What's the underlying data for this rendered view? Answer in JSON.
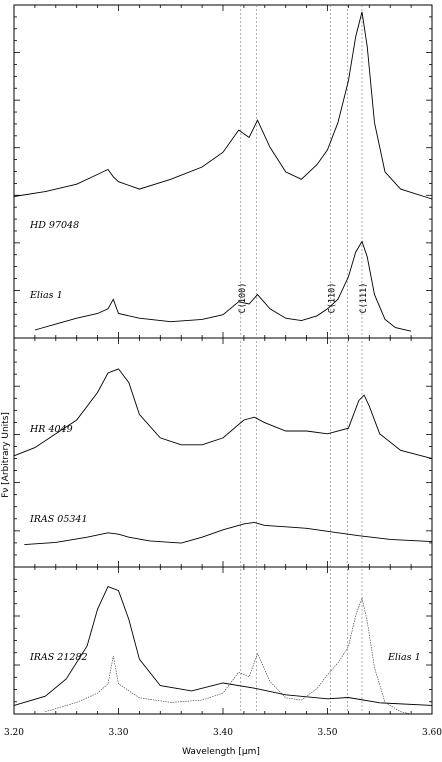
{
  "chart_data": {
    "type": "line",
    "xlabel": "Wavelength [μm]",
    "ylabel": "Fν [Arbitrary Units]",
    "xlim": [
      3.2,
      3.6
    ],
    "x_ticks": [
      "3.20",
      "3.30",
      "3.40",
      "3.50",
      "3.60"
    ],
    "reference_lines": [
      {
        "x": 3.417,
        "label": "C(100)"
      },
      {
        "x": 3.432,
        "label": ""
      },
      {
        "x": 3.503,
        "label": "C(110)"
      },
      {
        "x": 3.519,
        "label": ""
      },
      {
        "x": 3.533,
        "label": "C(111)"
      }
    ],
    "panels": [
      {
        "ylim": [
          0,
          1
        ],
        "series": [
          {
            "name": "HD 97048",
            "style": "solid",
            "x": [
              3.2,
              3.23,
              3.26,
              3.28,
              3.29,
              3.295,
              3.3,
              3.32,
              3.35,
              3.38,
              3.4,
              3.415,
              3.425,
              3.433,
              3.445,
              3.46,
              3.475,
              3.49,
              3.5,
              3.51,
              3.52,
              3.527,
              3.533,
              3.538,
              3.545,
              3.555,
              3.57,
              3.6
            ],
            "y": [
              0.25,
              0.27,
              0.3,
              0.34,
              0.36,
              0.33,
              0.31,
              0.28,
              0.32,
              0.37,
              0.43,
              0.52,
              0.49,
              0.56,
              0.45,
              0.35,
              0.32,
              0.38,
              0.44,
              0.55,
              0.72,
              0.9,
              1.0,
              0.86,
              0.55,
              0.35,
              0.28,
              0.24
            ]
          },
          {
            "name": "Elias 1",
            "style": "solid",
            "x": [
              3.22,
              3.24,
              3.26,
              3.28,
              3.29,
              3.295,
              3.3,
              3.32,
              3.35,
              3.38,
              3.4,
              3.415,
              3.425,
              3.433,
              3.445,
              3.46,
              3.475,
              3.49,
              3.5,
              3.51,
              3.52,
              3.527,
              3.533,
              3.538,
              3.545,
              3.555,
              3.565,
              3.58
            ],
            "y": [
              0.0,
              0.05,
              0.1,
              0.14,
              0.18,
              0.26,
              0.14,
              0.1,
              0.07,
              0.09,
              0.13,
              0.24,
              0.22,
              0.3,
              0.18,
              0.1,
              0.08,
              0.12,
              0.18,
              0.26,
              0.45,
              0.66,
              0.75,
              0.62,
              0.3,
              0.09,
              0.02,
              -0.01
            ]
          }
        ]
      },
      {
        "ylim": [
          0,
          1
        ],
        "series": [
          {
            "name": "HR 4049",
            "style": "solid",
            "x": [
              3.2,
              3.22,
              3.24,
              3.26,
              3.28,
              3.29,
              3.3,
              3.31,
              3.32,
              3.34,
              3.36,
              3.38,
              3.4,
              3.42,
              3.43,
              3.44,
              3.46,
              3.48,
              3.5,
              3.52,
              3.53,
              3.535,
              3.54,
              3.55,
              3.57,
              3.6
            ],
            "y": [
              0.32,
              0.38,
              0.48,
              0.58,
              0.78,
              0.92,
              0.95,
              0.85,
              0.62,
              0.45,
              0.4,
              0.4,
              0.45,
              0.58,
              0.6,
              0.56,
              0.5,
              0.5,
              0.48,
              0.52,
              0.72,
              0.76,
              0.68,
              0.48,
              0.36,
              0.3
            ]
          },
          {
            "name": "IRAS 05341",
            "style": "solid",
            "x": [
              3.21,
              3.24,
              3.27,
              3.29,
              3.3,
              3.31,
              3.33,
              3.36,
              3.38,
              3.4,
              3.42,
              3.43,
              3.44,
              3.46,
              3.48,
              3.5,
              3.53,
              3.56,
              3.6
            ],
            "y": [
              0.1,
              0.13,
              0.2,
              0.26,
              0.24,
              0.2,
              0.15,
              0.12,
              0.2,
              0.3,
              0.38,
              0.4,
              0.36,
              0.34,
              0.32,
              0.28,
              0.22,
              0.17,
              0.14
            ]
          }
        ]
      },
      {
        "ylim": [
          0,
          1
        ],
        "series": [
          {
            "name": "IRAS 21282",
            "style": "solid",
            "x": [
              3.2,
              3.23,
              3.25,
              3.27,
              3.28,
              3.29,
              3.3,
              3.31,
              3.32,
              3.34,
              3.37,
              3.4,
              3.43,
              3.46,
              3.5,
              3.52,
              3.55,
              3.6
            ],
            "y": [
              0.05,
              0.12,
              0.25,
              0.5,
              0.78,
              0.95,
              0.92,
              0.7,
              0.4,
              0.2,
              0.16,
              0.22,
              0.18,
              0.13,
              0.1,
              0.11,
              0.07,
              0.05
            ]
          },
          {
            "name": "Elias 1",
            "style": "dotted",
            "x": [
              3.23,
              3.26,
              3.28,
              3.29,
              3.295,
              3.3,
              3.32,
              3.35,
              3.38,
              3.4,
              3.415,
              3.425,
              3.433,
              3.445,
              3.46,
              3.475,
              3.49,
              3.5,
              3.51,
              3.52,
              3.527,
              3.533,
              3.538,
              3.545,
              3.555,
              3.57,
              3.58
            ],
            "y": [
              0.02,
              0.1,
              0.18,
              0.26,
              0.5,
              0.26,
              0.14,
              0.1,
              0.12,
              0.18,
              0.36,
              0.32,
              0.52,
              0.28,
              0.14,
              0.12,
              0.22,
              0.34,
              0.44,
              0.58,
              0.85,
              1.0,
              0.8,
              0.4,
              0.1,
              0.02,
              0.0
            ]
          }
        ]
      }
    ]
  }
}
